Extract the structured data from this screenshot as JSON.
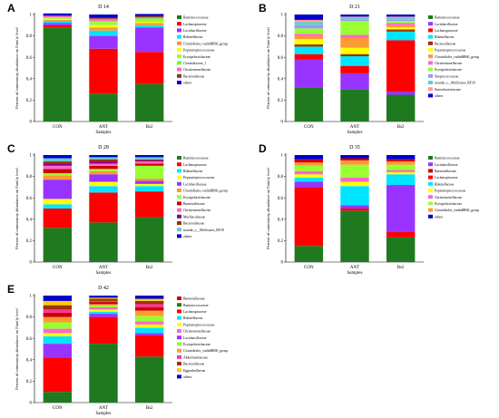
{
  "colors": {
    "Ruminococcaceae": "#1f7a1f",
    "Lachnospiraceae": "#ff0000",
    "Lactobacillaceae": "#9933ff",
    "Rikenellaceae": "#00e5ff",
    "Peptostreptococcaceae": "#ffff00",
    "Clostridiales_vadinBB60_group": "#ff9933",
    "Erysipelotrichaceae": "#99ff33",
    "Clostridiaceae_1": "#66ff33",
    "Christensenellaceae": "#ff66cc",
    "Bacteroidaceae": "#993300",
    "Barnesiellaceae": "#cc0000",
    "Muribaculaceae": "#8b008b",
    "norank_o_Mollicutes_RF39": "#66cccc",
    "Enterobacteriaceae": "#ff9999",
    "Streptococcaceae": "#9999ff",
    "Akkermansiaceae": "#ff3399",
    "Eggerthellaceae": "#ffcc00",
    "Moraxellaceae": "#cccc00",
    "others": "#0000cc"
  },
  "chart_data": [
    {
      "type": "bar",
      "panel": "A",
      "title": "D 14",
      "xlabel": "Samples",
      "ylabel": "Percent of community abundance on Family level",
      "ylim": [
        0,
        1
      ],
      "yticks": [
        "0",
        "0.2",
        "0.4",
        "0.6",
        "0.8",
        "1"
      ],
      "categories": [
        "CON",
        "ANT",
        "Bs2"
      ],
      "legend": [
        {
          "name": "Ruminococcaceae",
          "color_key": "Ruminococcaceae"
        },
        {
          "name": "Lachnospiraceae",
          "color_key": "Lachnospiraceae"
        },
        {
          "name": "Lactobacillaceae",
          "color_key": "Lactobacillaceae"
        },
        {
          "name": "Rikenellaceae",
          "color_key": "Rikenellaceae"
        },
        {
          "name": "Clostridiales_vadinBB60_group",
          "color_key": "Clostridiales_vadinBB60_group"
        },
        {
          "name": "Peptostreptococcaceae",
          "color_key": "Peptostreptococcaceae"
        },
        {
          "name": "Erysipelotrichaceae",
          "color_key": "Erysipelotrichaceae"
        },
        {
          "name": "Clostridiaceae_1",
          "color_key": "Clostridiaceae_1"
        },
        {
          "name": "Christensenellaceae",
          "color_key": "Christensenellaceae"
        },
        {
          "name": "Bacteroidaceae",
          "color_key": "Bacteroidaceae"
        },
        {
          "name": "others",
          "color_key": "others"
        }
      ],
      "series": [
        {
          "name": "Ruminococcaceae",
          "values": [
            0.88,
            0.26,
            0.35
          ]
        },
        {
          "name": "Lachnospiraceae",
          "values": [
            0.02,
            0.42,
            0.3
          ]
        },
        {
          "name": "Lactobacillaceae",
          "values": [
            0.02,
            0.12,
            0.23
          ]
        },
        {
          "name": "Rikenellaceae",
          "values": [
            0.02,
            0.05,
            0.02
          ]
        },
        {
          "name": "Clostridiales_vadinBB60_group",
          "values": [
            0.01,
            0.03,
            0.02
          ]
        },
        {
          "name": "Peptostreptococcaceae",
          "values": [
            0.01,
            0.02,
            0.01
          ]
        },
        {
          "name": "Erysipelotrichaceae",
          "values": [
            0.01,
            0.03,
            0.02
          ]
        },
        {
          "name": "Clostridiaceae_1",
          "values": [
            0.005,
            0.01,
            0.015
          ]
        },
        {
          "name": "Christensenellaceae",
          "values": [
            0.01,
            0.02,
            0.01
          ]
        },
        {
          "name": "Bacteroidaceae",
          "values": [
            0.005,
            0.01,
            0.01
          ]
        },
        {
          "name": "others",
          "values": [
            0.02,
            0.03,
            0.02
          ]
        }
      ]
    },
    {
      "type": "bar",
      "panel": "B",
      "title": "D 21",
      "xlabel": "Samples",
      "ylabel": "Percent of community abundance on Family level",
      "ylim": [
        0,
        1
      ],
      "yticks": [
        "0",
        "0.2",
        "0.4",
        "0.6",
        "0.8",
        "1"
      ],
      "categories": [
        "CON",
        "ANT",
        "Bs2"
      ],
      "legend": [
        {
          "name": "Ruminococcaceae",
          "color_key": "Ruminococcaceae"
        },
        {
          "name": "Lactobacillaceae",
          "color_key": "Lactobacillaceae"
        },
        {
          "name": "Lachnospiraceae",
          "color_key": "Lachnospiraceae"
        },
        {
          "name": "Rikenellaceae",
          "color_key": "Rikenellaceae"
        },
        {
          "name": "Bacteroidaceae",
          "color_key": "Bacteroidaceae"
        },
        {
          "name": "Peptostreptococcaceae",
          "color_key": "Peptostreptococcaceae"
        },
        {
          "name": "Clostridiales_vadinBB60_group",
          "color_key": "Clostridiales_vadinBB60_group"
        },
        {
          "name": "Christensenellaceae",
          "color_key": "Christensenellaceae"
        },
        {
          "name": "Erysipelotrichaceae",
          "color_key": "Erysipelotrichaceae"
        },
        {
          "name": "Streptococcaceae",
          "color_key": "Streptococcaceae"
        },
        {
          "name": "norank_o__Mollicutes_RF39",
          "color_key": "norank_o_Mollicutes_RF39"
        },
        {
          "name": "Enterobacteriaceae",
          "color_key": "Enterobacteriaceae"
        },
        {
          "name": "others",
          "color_key": "others"
        }
      ],
      "series": [
        {
          "name": "Ruminococcaceae",
          "values": [
            0.32,
            0.3,
            0.25
          ]
        },
        {
          "name": "Lactobacillaceae",
          "values": [
            0.26,
            0.15,
            0.03
          ]
        },
        {
          "name": "Lachnospiraceae",
          "values": [
            0.05,
            0.07,
            0.48
          ]
        },
        {
          "name": "Rikenellaceae",
          "values": [
            0.07,
            0.09,
            0.08
          ]
        },
        {
          "name": "Bacteroidaceae",
          "values": [
            0.02,
            0.02,
            0.02
          ]
        },
        {
          "name": "Peptostreptococcaceae",
          "values": [
            0.05,
            0.06,
            0.02
          ]
        },
        {
          "name": "Clostridiales_vadinBB60_group",
          "values": [
            0.03,
            0.09,
            0.02
          ]
        },
        {
          "name": "Christensenellaceae",
          "values": [
            0.02,
            0.03,
            0.02
          ]
        },
        {
          "name": "Erysipelotrichaceae",
          "values": [
            0.05,
            0.13,
            0.02
          ]
        },
        {
          "name": "Streptococcaceae",
          "values": [
            0.03,
            0.01,
            0.01
          ]
        },
        {
          "name": "norank_o__Mollicutes_RF39",
          "values": [
            0.03,
            0.02,
            0.02
          ]
        },
        {
          "name": "Enterobacteriaceae",
          "values": [
            0.02,
            0.01,
            0.01
          ]
        },
        {
          "name": "others",
          "values": [
            0.05,
            0.02,
            0.02
          ]
        }
      ]
    },
    {
      "type": "bar",
      "panel": "C",
      "title": "D 28",
      "xlabel": "Samples",
      "ylabel": "Percent of community abundance on Family level",
      "ylim": [
        0,
        1
      ],
      "yticks": [
        "0",
        "0.2",
        "0.4",
        "0.6",
        "0.8",
        "1"
      ],
      "categories": [
        "CON",
        "ANT",
        "Bs2"
      ],
      "legend": [
        {
          "name": "Ruminococcaceae",
          "color_key": "Ruminococcaceae"
        },
        {
          "name": "Lachnospiraceae",
          "color_key": "Lachnospiraceae"
        },
        {
          "name": "Rikenellaceae",
          "color_key": "Rikenellaceae"
        },
        {
          "name": "Peptostreptococcaceae",
          "color_key": "Peptostreptococcaceae"
        },
        {
          "name": "Lactobacillaceae",
          "color_key": "Lactobacillaceae"
        },
        {
          "name": "Clostridiales_vadinBB60_group",
          "color_key": "Clostridiales_vadinBB60_group"
        },
        {
          "name": "Erysipelotrichaceae",
          "color_key": "Erysipelotrichaceae"
        },
        {
          "name": "Barnesiellaceae",
          "color_key": "Barnesiellaceae"
        },
        {
          "name": "Christensenellaceae",
          "color_key": "Christensenellaceae"
        },
        {
          "name": "Muribaculaceae",
          "color_key": "Muribaculaceae"
        },
        {
          "name": "Bacteroidaceae",
          "color_key": "Bacteroidaceae"
        },
        {
          "name": "norank_o__Mollicutes_RF39",
          "color_key": "norank_o_Mollicutes_RF39"
        },
        {
          "name": "others",
          "color_key": "others"
        }
      ],
      "series": [
        {
          "name": "Ruminococcaceae",
          "values": [
            0.32,
            0.37,
            0.42
          ]
        },
        {
          "name": "Lachnospiraceae",
          "values": [
            0.18,
            0.28,
            0.24
          ]
        },
        {
          "name": "Rikenellaceae",
          "values": [
            0.04,
            0.06,
            0.05
          ]
        },
        {
          "name": "Peptostreptococcaceae",
          "values": [
            0.05,
            0.04,
            0.02
          ]
        },
        {
          "name": "Lactobacillaceae",
          "values": [
            0.18,
            0.07,
            0.03
          ]
        },
        {
          "name": "Clostridiales_vadinBB60_group",
          "values": [
            0.04,
            0.03,
            0.02
          ]
        },
        {
          "name": "Erysipelotrichaceae",
          "values": [
            0.02,
            0.02,
            0.12
          ]
        },
        {
          "name": "Barnesiellaceae",
          "values": [
            0.04,
            0.03,
            0.02
          ]
        },
        {
          "name": "Christensenellaceae",
          "values": [
            0.03,
            0.02,
            0.02
          ]
        },
        {
          "name": "Muribaculaceae",
          "values": [
            0.02,
            0.02,
            0.01
          ]
        },
        {
          "name": "Bacteroidaceae",
          "values": [
            0.02,
            0.02,
            0.01
          ]
        },
        {
          "name": "norank_o__Mollicutes_RF39",
          "values": [
            0.03,
            0.02,
            0.02
          ]
        },
        {
          "name": "others",
          "values": [
            0.03,
            0.02,
            0.02
          ]
        }
      ]
    },
    {
      "type": "bar",
      "panel": "D",
      "title": "D 35",
      "xlabel": "Samples",
      "ylabel": "Percent of community abundance on Family level",
      "ylim": [
        0,
        1
      ],
      "yticks": [
        "0",
        "0.2",
        "0.4",
        "0.6",
        "0.8",
        "1"
      ],
      "categories": [
        "CON",
        "ANT",
        "Bs2"
      ],
      "legend": [
        {
          "name": "Ruminococcaceae",
          "color_key": "Ruminococcaceae"
        },
        {
          "name": "Lactobacillaceae",
          "color_key": "Lactobacillaceae"
        },
        {
          "name": "Barnesiellaceae",
          "color_key": "Barnesiellaceae"
        },
        {
          "name": "Lachnospiraceae",
          "color_key": "Lachnospiraceae"
        },
        {
          "name": "Rikenellaceae",
          "color_key": "Rikenellaceae"
        },
        {
          "name": "Peptostreptococcaceae",
          "color_key": "Peptostreptococcaceae"
        },
        {
          "name": "Christensenellaceae",
          "color_key": "Christensenellaceae"
        },
        {
          "name": "Erysipelotrichaceae",
          "color_key": "Erysipelotrichaceae"
        },
        {
          "name": "Clostridiales_vadinBB60_group",
          "color_key": "Clostridiales_vadinBB60_group"
        },
        {
          "name": "others",
          "color_key": "others"
        }
      ],
      "series": [
        {
          "name": "Ruminococcaceae",
          "values": [
            0.15,
            0.48,
            0.23
          ]
        },
        {
          "name": "Lachnospiraceae",
          "values": [
            0.55,
            0.02,
            0.05
          ]
        },
        {
          "name": "Lactobacillaceae",
          "values": [
            0.05,
            0.03,
            0.44
          ]
        },
        {
          "name": "Rikenellaceae",
          "values": [
            0.04,
            0.18,
            0.1
          ]
        },
        {
          "name": "Peptostreptococcaceae",
          "values": [
            0.03,
            0.04,
            0.02
          ]
        },
        {
          "name": "Christensenellaceae",
          "values": [
            0.03,
            0.04,
            0.02
          ]
        },
        {
          "name": "Erysipelotrichaceae",
          "values": [
            0.05,
            0.12,
            0.05
          ]
        },
        {
          "name": "Clostridiales_vadinBB60_group",
          "values": [
            0.03,
            0.04,
            0.03
          ]
        },
        {
          "name": "Barnesiellaceae",
          "values": [
            0.03,
            0.02,
            0.02
          ]
        },
        {
          "name": "others",
          "values": [
            0.04,
            0.03,
            0.04
          ]
        }
      ]
    },
    {
      "type": "bar",
      "panel": "E",
      "title": "D 42",
      "xlabel": "Samples",
      "ylabel": "Percent of community abundance on Family level",
      "ylim": [
        0,
        1
      ],
      "yticks": [
        "0",
        "0.2",
        "0.4",
        "0.6",
        "0.8",
        "1"
      ],
      "categories": [
        "CON",
        "ANT",
        "Bs2"
      ],
      "legend": [
        {
          "name": "Barnesiellaceae",
          "color_key": "Barnesiellaceae"
        },
        {
          "name": "Ruminococcaceae",
          "color_key": "Ruminococcaceae"
        },
        {
          "name": "Lachnospiraceae",
          "color_key": "Lachnospiraceae"
        },
        {
          "name": "Rikenellaceae",
          "color_key": "Rikenellaceae"
        },
        {
          "name": "Peptostreptococcaceae",
          "color_key": "Peptostreptococcaceae"
        },
        {
          "name": "Christensenellaceae",
          "color_key": "Christensenellaceae"
        },
        {
          "name": "Lactobacillaceae",
          "color_key": "Lactobacillaceae"
        },
        {
          "name": "Erysipelotrichaceae",
          "color_key": "Erysipelotrichaceae"
        },
        {
          "name": "Clostridiales_vadinBB60_group",
          "color_key": "Clostridiales_vadinBB60_group"
        },
        {
          "name": "Akkermansiaceae",
          "color_key": "Akkermansiaceae"
        },
        {
          "name": "Bacteroidaceae",
          "color_key": "Bacteroidaceae"
        },
        {
          "name": "Eggerthellaceae",
          "color_key": "Eggerthellaceae"
        },
        {
          "name": "others",
          "color_key": "others"
        }
      ],
      "series": [
        {
          "name": "Ruminococcaceae",
          "values": [
            0.1,
            0.55,
            0.43
          ]
        },
        {
          "name": "Lachnospiraceae",
          "values": [
            0.32,
            0.25,
            0.2
          ]
        },
        {
          "name": "Lactobacillaceae",
          "values": [
            0.13,
            0.03,
            0.02
          ]
        },
        {
          "name": "Rikenellaceae",
          "values": [
            0.07,
            0.02,
            0.05
          ]
        },
        {
          "name": "Peptostreptococcaceae",
          "values": [
            0.03,
            0.02,
            0.03
          ]
        },
        {
          "name": "Christensenellaceae",
          "values": [
            0.04,
            0.02,
            0.03
          ]
        },
        {
          "name": "Erysipelotrichaceae",
          "values": [
            0.06,
            0.02,
            0.05
          ]
        },
        {
          "name": "Clostridiales_vadinBB60_group",
          "values": [
            0.05,
            0.01,
            0.05
          ]
        },
        {
          "name": "Barnesiellaceae",
          "values": [
            0.04,
            0.02,
            0.03
          ]
        },
        {
          "name": "Akkermansiaceae",
          "values": [
            0.03,
            0.01,
            0.03
          ]
        },
        {
          "name": "Bacteroidaceae",
          "values": [
            0.04,
            0.02,
            0.03
          ]
        },
        {
          "name": "Eggerthellaceae",
          "values": [
            0.04,
            0.01,
            0.02
          ]
        },
        {
          "name": "others",
          "values": [
            0.05,
            0.02,
            0.03
          ]
        }
      ]
    }
  ]
}
